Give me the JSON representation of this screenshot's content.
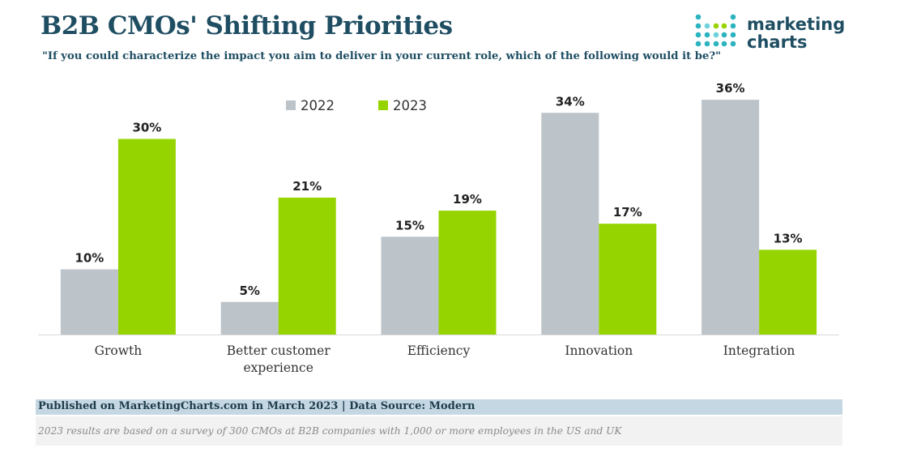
{
  "header": {
    "title": "B2B CMOs' Shifting Priorities",
    "subtitle": "\"If you could characterize the impact you aim to deliver in your current role, which of the following would it be?\""
  },
  "logo": {
    "line1": "marketing",
    "line2": "charts",
    "icon": "dot-grid-logo-icon"
  },
  "footer": {
    "published": "Published on MarketingCharts.com in March 2023 | Data Source: Modern",
    "note": "2023 results are based on a survey of 300 CMOs at B2B companies with 1,000 or more employees in the US and UK"
  },
  "colors": {
    "series_2022": "#bcc3c9",
    "series_2023": "#96d400",
    "title": "#1f4e63"
  },
  "chart_data": {
    "type": "bar",
    "title": "B2B CMOs' Shifting Priorities",
    "xlabel": "",
    "ylabel": "",
    "ylim": [
      0,
      36
    ],
    "grid": false,
    "legend": "top-center",
    "categories": [
      [
        "Growth"
      ],
      [
        "Better customer",
        "experience"
      ],
      [
        "Efficiency"
      ],
      [
        "Innovation"
      ],
      [
        "Integration"
      ]
    ],
    "series": [
      {
        "name": "2022",
        "color": "#bcc3c9",
        "values": [
          10,
          5,
          15,
          34,
          36
        ],
        "labels": [
          "10%",
          "5%",
          "15%",
          "34%",
          "36%"
        ]
      },
      {
        "name": "2023",
        "color": "#96d400",
        "values": [
          30,
          21,
          19,
          17,
          13
        ],
        "labels": [
          "30%",
          "21%",
          "19%",
          "17%",
          "13%"
        ]
      }
    ]
  }
}
